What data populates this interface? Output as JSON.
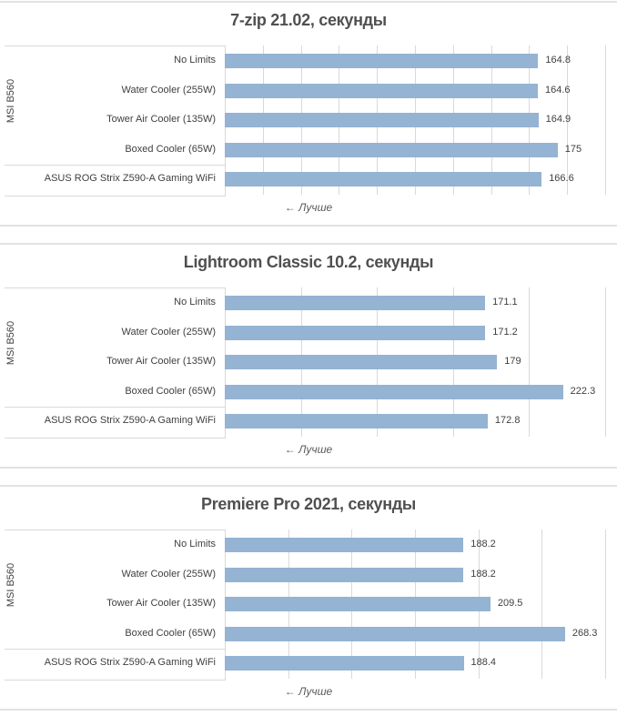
{
  "chart_data": [
    {
      "type": "bar",
      "title": "7-zip 21.02, секунды",
      "group_label": "MSI B560",
      "categories": [
        "No Limits",
        "Water Cooler (255W)",
        "Tower Air Cooler (135W)",
        "Boxed Cooler (65W)",
        "ASUS ROG Strix Z590-A Gaming WiFi"
      ],
      "values": [
        164.8,
        164.6,
        164.9,
        175,
        166.6
      ],
      "value_labels": [
        "164.8",
        "164.6",
        "164.9",
        "175",
        "166.6"
      ],
      "xlim": [
        0,
        200
      ],
      "grid_step": 20,
      "note": "← Лучше",
      "grid": true
    },
    {
      "type": "bar",
      "title": "Lightroom Classic 10.2, секунды",
      "group_label": "MSI B560",
      "categories": [
        "No Limits",
        "Water Cooler (255W)",
        "Tower Air Cooler (135W)",
        "Boxed Cooler (65W)",
        "ASUS ROG Strix Z590-A Gaming WiFi"
      ],
      "values": [
        171.1,
        171.2,
        179,
        222.3,
        172.8
      ],
      "value_labels": [
        "171.1",
        "171.2",
        "179",
        "222.3",
        "172.8"
      ],
      "xlim": [
        0,
        250
      ],
      "grid_step": 50,
      "note": "← Лучше",
      "grid": true
    },
    {
      "type": "bar",
      "title": "Premiere Pro 2021, секунды",
      "group_label": "MSI B560",
      "categories": [
        "No Limits",
        "Water Cooler (255W)",
        "Tower Air Cooler (135W)",
        "Boxed Cooler (65W)",
        "ASUS ROG Strix Z590-A Gaming WiFi"
      ],
      "values": [
        188.2,
        188.2,
        209.5,
        268.3,
        188.4
      ],
      "value_labels": [
        "188.2",
        "188.2",
        "209.5",
        "268.3",
        "188.4"
      ],
      "xlim": [
        0,
        300
      ],
      "grid_step": 50,
      "note": "← Лучше",
      "grid": true
    }
  ],
  "colors": {
    "bar": "#95b3d2"
  }
}
